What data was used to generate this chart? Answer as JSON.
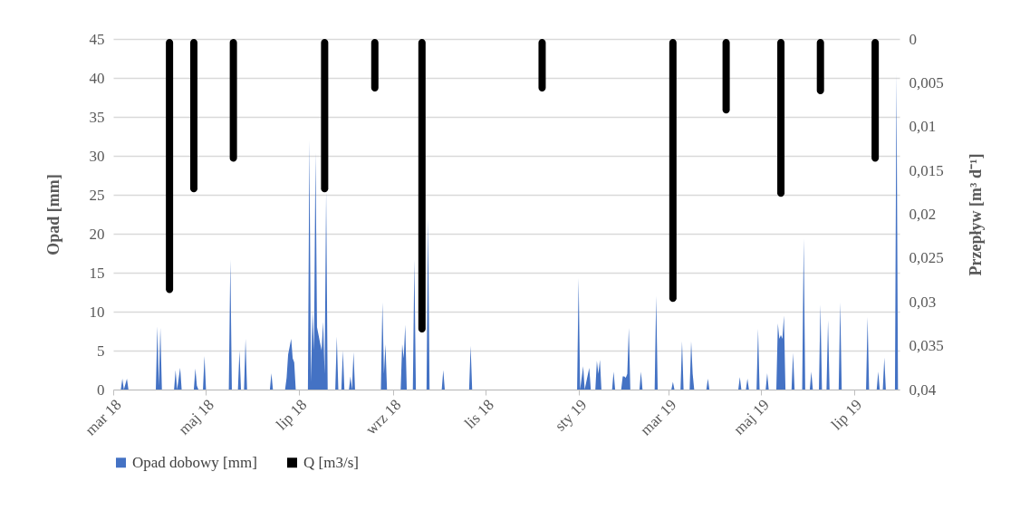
{
  "chart_data": {
    "type": "area",
    "ylabel": "Opad [mm]",
    "y2label": "Przepływ [m³ d⁻¹]",
    "xlim": [
      "2018-03-01",
      "2019-07-31"
    ],
    "xticks": [
      {
        "value": "2018-03-01",
        "label": "mar 18"
      },
      {
        "value": "2018-05-01",
        "label": "maj 18"
      },
      {
        "value": "2018-07-01",
        "label": "lip 18"
      },
      {
        "value": "2018-09-01",
        "label": "wrz 18"
      },
      {
        "value": "2018-11-01",
        "label": "lis 18"
      },
      {
        "value": "2019-01-01",
        "label": "sty 19"
      },
      {
        "value": "2019-03-01",
        "label": "mar 19"
      },
      {
        "value": "2019-05-01",
        "label": "maj 19"
      },
      {
        "value": "2019-07-01",
        "label": "lip 19"
      }
    ],
    "ylim": [
      0,
      45
    ],
    "yticks": [
      0,
      5,
      10,
      15,
      20,
      25,
      30,
      35,
      40,
      45
    ],
    "y2lim": [
      0.04,
      0
    ],
    "y2ticks": [
      0,
      {
        "value": 0.005,
        "label": "0,005"
      },
      {
        "value": 0.01,
        "label": "0,01"
      },
      {
        "value": 0.015,
        "label": "0,015"
      },
      {
        "value": 0.02,
        "label": "0,02"
      },
      {
        "value": 0.025,
        "label": "0,025"
      },
      {
        "value": 0.03,
        "label": "0,03"
      },
      {
        "value": 0.035,
        "label": "0,035"
      },
      {
        "value": 0.04,
        "label": "0,04"
      }
    ],
    "grid": "y",
    "legend": "bottom",
    "series": [
      {
        "name": "Opad dobowy [mm]",
        "color": "#4472c4",
        "x": [
          "2018-03-01",
          "2018-03-06",
          "2018-03-07",
          "2018-03-08",
          "2018-03-10",
          "2018-03-11",
          "2018-03-29",
          "2018-03-30",
          "2018-03-31",
          "2018-04-01",
          "2018-04-02",
          "2018-04-10",
          "2018-04-11",
          "2018-04-12",
          "2018-04-14",
          "2018-04-15",
          "2018-04-23",
          "2018-04-24",
          "2018-04-25",
          "2018-04-26",
          "2018-04-29",
          "2018-04-30",
          "2018-05-01",
          "2018-05-16",
          "2018-05-17",
          "2018-05-18",
          "2018-05-22",
          "2018-05-23",
          "2018-05-24",
          "2018-05-26",
          "2018-05-27",
          "2018-05-28",
          "2018-06-12",
          "2018-06-13",
          "2018-06-14",
          "2018-06-22",
          "2018-06-23",
          "2018-06-24",
          "2018-06-25",
          "2018-06-26",
          "2018-06-27",
          "2018-06-28",
          "2018-06-29",
          "2018-07-07",
          "2018-07-08",
          "2018-07-09",
          "2018-07-10",
          "2018-07-11",
          "2018-07-12",
          "2018-07-13",
          "2018-07-14",
          "2018-07-15",
          "2018-07-16",
          "2018-07-17",
          "2018-07-18",
          "2018-07-19",
          "2018-07-20",
          "2018-07-25",
          "2018-07-26",
          "2018-07-27",
          "2018-07-29",
          "2018-07-30",
          "2018-07-31",
          "2018-08-03",
          "2018-08-04",
          "2018-08-05",
          "2018-08-06",
          "2018-08-07",
          "2018-08-24",
          "2018-08-25",
          "2018-08-26",
          "2018-08-27",
          "2018-08-28",
          "2018-09-06",
          "2018-09-07",
          "2018-09-08",
          "2018-09-09",
          "2018-09-10",
          "2018-09-14",
          "2018-09-15",
          "2018-09-16",
          "2018-09-23",
          "2018-09-24",
          "2018-09-25",
          "2018-10-03",
          "2018-10-04",
          "2018-10-05",
          "2018-10-21",
          "2018-10-22",
          "2018-10-23",
          "2018-12-31",
          "2019-01-01",
          "2019-01-02",
          "2019-01-04",
          "2019-01-05",
          "2019-01-08",
          "2019-01-09",
          "2019-01-12",
          "2019-01-13",
          "2019-01-14",
          "2019-01-15",
          "2019-01-16",
          "2019-01-23",
          "2019-01-24",
          "2019-01-25",
          "2019-01-29",
          "2019-01-30",
          "2019-01-31",
          "2019-02-01",
          "2019-02-02",
          "2019-02-03",
          "2019-02-04",
          "2019-02-10",
          "2019-02-11",
          "2019-02-12",
          "2019-02-20",
          "2019-02-21",
          "2019-02-22",
          "2019-03-03",
          "2019-03-04",
          "2019-03-05",
          "2019-03-09",
          "2019-03-10",
          "2019-03-11",
          "2019-03-15",
          "2019-03-16",
          "2019-03-17",
          "2019-03-18",
          "2019-03-26",
          "2019-03-27",
          "2019-03-28",
          "2019-04-16",
          "2019-04-17",
          "2019-04-18",
          "2019-04-21",
          "2019-04-22",
          "2019-04-23",
          "2019-04-28",
          "2019-04-29",
          "2019-04-30",
          "2019-05-04",
          "2019-05-05",
          "2019-05-06",
          "2019-05-11",
          "2019-05-12",
          "2019-05-13",
          "2019-05-14",
          "2019-05-15",
          "2019-05-16",
          "2019-05-17",
          "2019-05-21",
          "2019-05-22",
          "2019-05-23",
          "2019-05-28",
          "2019-05-29",
          "2019-05-30",
          "2019-06-02",
          "2019-06-03",
          "2019-06-04",
          "2019-06-08",
          "2019-06-09",
          "2019-06-10",
          "2019-06-13",
          "2019-06-14",
          "2019-06-15",
          "2019-06-21",
          "2019-06-22",
          "2019-06-23",
          "2019-07-09",
          "2019-07-10",
          "2019-07-11",
          "2019-07-16",
          "2019-07-17",
          "2019-07-18",
          "2019-07-20",
          "2019-07-21",
          "2019-07-22",
          "2019-07-28",
          "2019-07-29",
          "2019-07-30"
        ],
        "values": [
          0,
          0,
          1.4,
          0,
          1.4,
          0,
          0,
          8.1,
          0.5,
          7.9,
          0,
          0,
          2.5,
          0,
          2.8,
          0,
          0,
          2.7,
          0.5,
          0,
          0,
          4.3,
          0,
          0,
          16.7,
          0,
          0,
          5,
          0,
          0,
          6.5,
          0,
          0,
          2.1,
          0,
          0,
          1.5,
          4.5,
          5.5,
          6.5,
          4,
          3.5,
          0,
          0,
          32,
          1,
          10,
          5,
          30.4,
          8,
          7,
          6,
          5,
          8.7,
          2,
          25.5,
          0,
          0,
          6.8,
          0,
          0,
          5,
          0,
          0,
          1.7,
          0,
          4.8,
          0,
          0,
          11.2,
          2,
          5.8,
          0,
          0,
          5.8,
          4,
          8.3,
          0,
          0,
          16.7,
          0,
          0,
          21.9,
          0,
          0,
          2.5,
          0,
          0,
          5.6,
          0,
          0,
          14.3,
          0,
          3,
          0,
          2.8,
          0,
          0,
          3.7,
          2,
          3.8,
          0,
          0,
          2.3,
          0,
          0,
          1.7,
          1.7,
          1.5,
          2,
          7.9,
          0,
          0,
          2.3,
          0,
          0,
          12,
          0,
          0,
          1,
          0,
          0,
          6.2,
          0,
          0,
          6.2,
          2,
          0,
          0,
          1.4,
          0,
          0,
          1.6,
          0,
          0,
          1.4,
          0,
          0,
          7.8,
          0,
          0,
          2.1,
          0,
          0,
          8.5,
          6.5,
          7,
          6.5,
          9.5,
          0,
          0,
          4.7,
          0,
          0,
          19.4,
          0,
          0,
          2.3,
          0,
          0,
          10.9,
          0,
          0,
          8.9,
          0,
          0,
          11.2,
          0,
          0,
          9.3,
          0,
          0,
          2.3,
          0,
          0,
          4.1,
          0,
          0,
          40.5,
          0
        ]
      },
      {
        "name": "Q [m3/s]",
        "type": "bar",
        "axis": "y2",
        "color": "#000000",
        "x": [
          "2018-04-07",
          "2018-04-23",
          "2018-05-19",
          "2018-07-18",
          "2018-08-20",
          "2018-09-20",
          "2018-12-08",
          "2019-03-04",
          "2019-04-08",
          "2019-05-14",
          "2019-06-09",
          "2019-07-15"
        ],
        "values": [
          0.029,
          0.0175,
          0.014,
          0.0175,
          0.006,
          0.0335,
          0.006,
          0.03,
          0.0085,
          0.018,
          0.0063,
          0.014
        ]
      }
    ]
  }
}
